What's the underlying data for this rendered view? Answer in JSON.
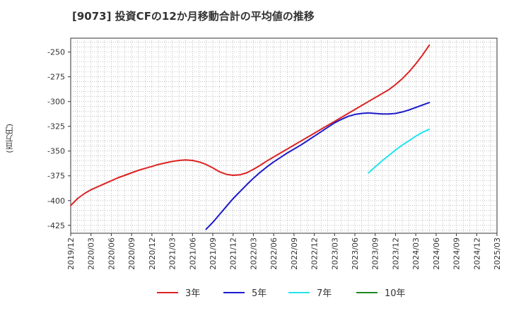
{
  "chart_data": {
    "type": "line",
    "title": "[9073]  投資CFの12か月移動合計の平均値の推移",
    "ylabel": "(百万円)",
    "xlabel": "",
    "x_ticks": [
      "2019/12",
      "2020/03",
      "2020/06",
      "2020/09",
      "2020/12",
      "2021/03",
      "2021/06",
      "2021/09",
      "2021/12",
      "2022/03",
      "2022/06",
      "2022/09",
      "2022/12",
      "2023/03",
      "2023/06",
      "2023/09",
      "2023/12",
      "2024/03",
      "2024/06",
      "2024/09",
      "2024/12",
      "2025/03"
    ],
    "y_ticks": [
      -250,
      -275,
      -300,
      -325,
      -350,
      -375,
      -400,
      -425
    ],
    "ylim": [
      -433,
      -236
    ],
    "grid": true,
    "legend_position": "bottom",
    "series": [
      {
        "name": "3年",
        "color": "#dd2222",
        "points": [
          [
            "2019/12",
            -405
          ],
          [
            "2020/01",
            -398
          ],
          [
            "2020/02",
            -393
          ],
          [
            "2020/03",
            -389
          ],
          [
            "2020/04",
            -386
          ],
          [
            "2020/05",
            -383
          ],
          [
            "2020/06",
            -380
          ],
          [
            "2020/07",
            -377
          ],
          [
            "2020/08",
            -374.5
          ],
          [
            "2020/09",
            -372
          ],
          [
            "2020/10",
            -369.5
          ],
          [
            "2020/11",
            -367.5
          ],
          [
            "2020/12",
            -365.5
          ],
          [
            "2021/01",
            -363.5
          ],
          [
            "2021/02",
            -362
          ],
          [
            "2021/03",
            -360.5
          ],
          [
            "2021/04",
            -359.5
          ],
          [
            "2021/05",
            -359
          ],
          [
            "2021/06",
            -359.5
          ],
          [
            "2021/07",
            -361
          ],
          [
            "2021/08",
            -363.5
          ],
          [
            "2021/09",
            -367
          ],
          [
            "2021/10",
            -371
          ],
          [
            "2021/11",
            -373.5
          ],
          [
            "2021/12",
            -374.5
          ],
          [
            "2022/01",
            -374
          ],
          [
            "2022/02",
            -372
          ],
          [
            "2022/03",
            -368.5
          ],
          [
            "2022/04",
            -364.5
          ],
          [
            "2022/05",
            -360
          ],
          [
            "2022/06",
            -356
          ],
          [
            "2022/07",
            -352
          ],
          [
            "2022/08",
            -348
          ],
          [
            "2022/09",
            -344
          ],
          [
            "2022/10",
            -340
          ],
          [
            "2022/11",
            -336
          ],
          [
            "2022/12",
            -332
          ],
          [
            "2023/01",
            -328
          ],
          [
            "2023/02",
            -324
          ],
          [
            "2023/03",
            -320
          ],
          [
            "2023/04",
            -316
          ],
          [
            "2023/05",
            -312
          ],
          [
            "2023/06",
            -308
          ],
          [
            "2023/07",
            -304
          ],
          [
            "2023/08",
            -300
          ],
          [
            "2023/09",
            -296
          ],
          [
            "2023/10",
            -292
          ],
          [
            "2023/11",
            -288
          ],
          [
            "2023/12",
            -283
          ],
          [
            "2024/01",
            -277
          ],
          [
            "2024/02",
            -270
          ],
          [
            "2024/03",
            -262
          ],
          [
            "2024/04",
            -253
          ],
          [
            "2024/05",
            -243
          ]
        ]
      },
      {
        "name": "5年",
        "color": "#1a1acc",
        "points": [
          [
            "2021/08",
            -429
          ],
          [
            "2021/09",
            -422
          ],
          [
            "2021/10",
            -414
          ],
          [
            "2021/11",
            -406
          ],
          [
            "2021/12",
            -398
          ],
          [
            "2022/01",
            -391
          ],
          [
            "2022/02",
            -384
          ],
          [
            "2022/03",
            -377.5
          ],
          [
            "2022/04",
            -371.5
          ],
          [
            "2022/05",
            -366
          ],
          [
            "2022/06",
            -361
          ],
          [
            "2022/07",
            -356.5
          ],
          [
            "2022/08",
            -352
          ],
          [
            "2022/09",
            -348
          ],
          [
            "2022/10",
            -344
          ],
          [
            "2022/11",
            -339.5
          ],
          [
            "2022/12",
            -335
          ],
          [
            "2023/01",
            -330.5
          ],
          [
            "2023/02",
            -326
          ],
          [
            "2023/03",
            -321.5
          ],
          [
            "2023/04",
            -318
          ],
          [
            "2023/05",
            -315
          ],
          [
            "2023/06",
            -313
          ],
          [
            "2023/07",
            -312
          ],
          [
            "2023/08",
            -311.5
          ],
          [
            "2023/09",
            -312
          ],
          [
            "2023/10",
            -312.5
          ],
          [
            "2023/11",
            -312.5
          ],
          [
            "2023/12",
            -312
          ],
          [
            "2024/01",
            -310.5
          ],
          [
            "2024/02",
            -308.5
          ],
          [
            "2024/03",
            -306
          ],
          [
            "2024/04",
            -303.5
          ],
          [
            "2024/05",
            -301
          ]
        ]
      },
      {
        "name": "7年",
        "color": "#22e5ee",
        "points": [
          [
            "2023/08",
            -372
          ],
          [
            "2023/09",
            -366
          ],
          [
            "2023/10",
            -360
          ],
          [
            "2023/11",
            -354.5
          ],
          [
            "2023/12",
            -349
          ],
          [
            "2024/01",
            -344
          ],
          [
            "2024/02",
            -339.5
          ],
          [
            "2024/03",
            -335
          ],
          [
            "2024/04",
            -331
          ],
          [
            "2024/05",
            -328
          ]
        ]
      },
      {
        "name": "10年",
        "color": "#228822",
        "points": []
      }
    ]
  }
}
